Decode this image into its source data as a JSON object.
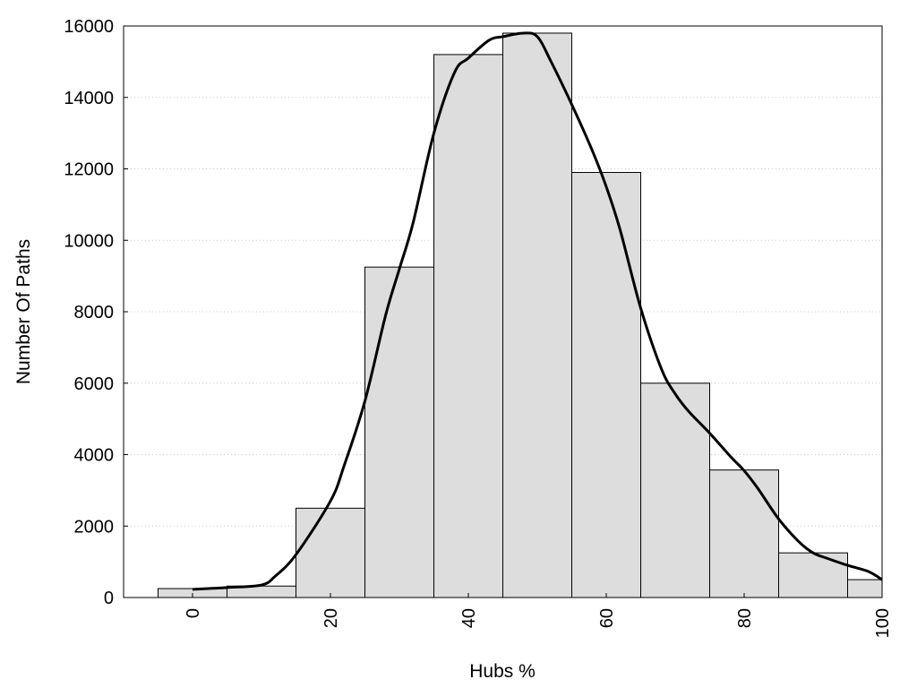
{
  "chart_data": {
    "type": "bar",
    "title": "",
    "xlabel": "Hubs %",
    "ylabel": "Number Of Paths",
    "xlim": [
      -10,
      100
    ],
    "ylim": [
      0,
      16000
    ],
    "xticks": [
      0,
      20,
      40,
      60,
      80,
      100
    ],
    "yticks": [
      0,
      2000,
      4000,
      6000,
      8000,
      10000,
      12000,
      14000,
      16000
    ],
    "bin_width": 10,
    "bins": [
      {
        "center": 0,
        "count": 250
      },
      {
        "center": 10,
        "count": 320
      },
      {
        "center": 20,
        "count": 2500
      },
      {
        "center": 30,
        "count": 9250
      },
      {
        "center": 40,
        "count": 15200
      },
      {
        "center": 50,
        "count": 15800
      },
      {
        "center": 60,
        "count": 11900
      },
      {
        "center": 70,
        "count": 6000
      },
      {
        "center": 80,
        "count": 3570
      },
      {
        "center": 90,
        "count": 1250
      },
      {
        "center": 100,
        "count": 500
      }
    ],
    "density_curve": {
      "x": [
        0,
        5,
        10,
        12,
        15,
        20,
        22,
        25,
        28,
        30,
        32,
        35,
        38,
        40,
        43,
        45,
        48,
        50,
        52,
        55,
        58,
        60,
        62,
        65,
        68,
        70,
        72,
        75,
        78,
        80,
        82,
        85,
        88,
        90,
        92,
        95,
        98,
        100
      ],
      "y": [
        230,
        280,
        350,
        600,
        1200,
        2700,
        3700,
        5500,
        7900,
        9200,
        10500,
        13000,
        14700,
        15100,
        15600,
        15700,
        15800,
        15700,
        15000,
        13800,
        12500,
        11500,
        10300,
        8100,
        6400,
        5700,
        5200,
        4600,
        3950,
        3550,
        3050,
        2200,
        1550,
        1250,
        1100,
        900,
        730,
        500
      ]
    },
    "grid": "horizontal-dotted",
    "legend": "none",
    "colors": {
      "bar_fill": "#dddddd",
      "bar_stroke": "#000000",
      "curve": "#000000",
      "grid": "#cccccc"
    }
  }
}
